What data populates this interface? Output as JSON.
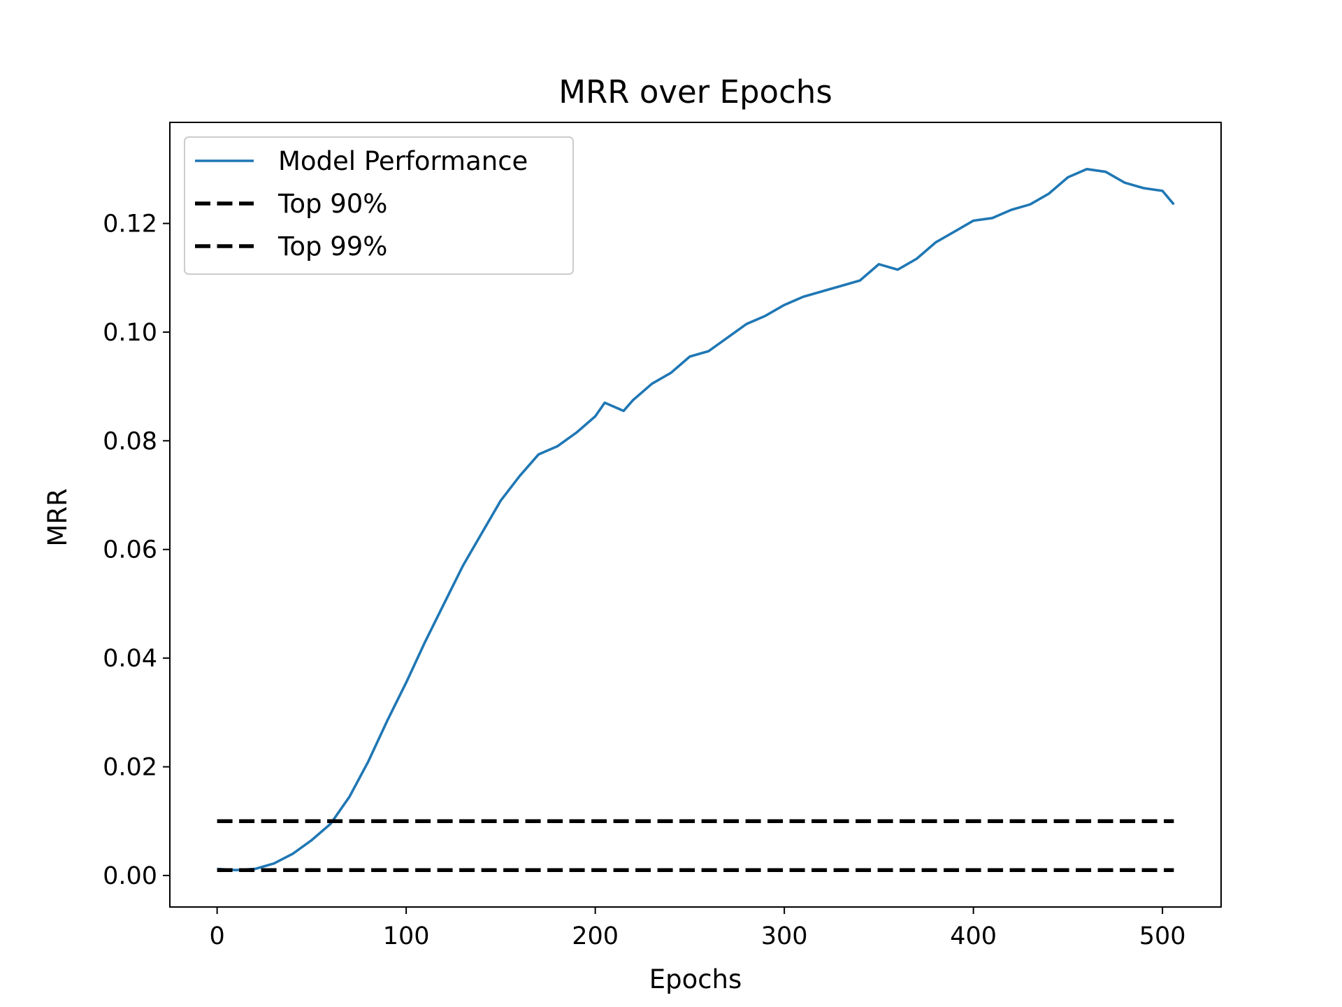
{
  "chart_data": {
    "type": "line",
    "title": "MRR over Epochs",
    "xlabel": "Epochs",
    "ylabel": "MRR",
    "xlim": [
      -25,
      531
    ],
    "ylim": [
      -0.0058,
      0.1386
    ],
    "xticks": [
      0,
      100,
      200,
      300,
      400,
      500
    ],
    "xtick_labels": [
      "0",
      "100",
      "200",
      "300",
      "400",
      "500"
    ],
    "yticks": [
      0.0,
      0.02,
      0.04,
      0.06,
      0.08,
      0.1,
      0.12
    ],
    "ytick_labels": [
      "0.00",
      "0.02",
      "0.04",
      "0.06",
      "0.08",
      "0.10",
      "0.12"
    ],
    "grid": false,
    "legend_position": "top-left",
    "series": [
      {
        "name": "Model Performance",
        "color": "#1f77b4",
        "style": "solid",
        "x": [
          0,
          10,
          20,
          30,
          40,
          50,
          60,
          70,
          80,
          90,
          100,
          110,
          120,
          130,
          140,
          150,
          160,
          170,
          180,
          190,
          200,
          205,
          215,
          220,
          230,
          240,
          250,
          260,
          270,
          280,
          290,
          300,
          310,
          320,
          330,
          340,
          350,
          360,
          370,
          380,
          390,
          400,
          410,
          420,
          430,
          440,
          450,
          460,
          470,
          480,
          490,
          500,
          506
        ],
        "y": [
          0.0012,
          0.001,
          0.0012,
          0.0022,
          0.004,
          0.0065,
          0.0095,
          0.0145,
          0.021,
          0.0285,
          0.0355,
          0.043,
          0.05,
          0.057,
          0.063,
          0.069,
          0.0735,
          0.0775,
          0.079,
          0.0815,
          0.0845,
          0.087,
          0.0855,
          0.0875,
          0.0905,
          0.0925,
          0.0955,
          0.0965,
          0.099,
          0.1015,
          0.103,
          0.105,
          0.1065,
          0.1075,
          0.1085,
          0.1095,
          0.1125,
          0.1115,
          0.1135,
          0.1165,
          0.1185,
          0.1205,
          0.121,
          0.1225,
          0.1235,
          0.1255,
          0.1285,
          0.13,
          0.1295,
          0.1275,
          0.1265,
          0.126,
          0.1235
        ]
      },
      {
        "name": "Top 90%",
        "color": "#000000",
        "style": "dashed",
        "x": [
          0,
          506
        ],
        "y": [
          0.01,
          0.01
        ]
      },
      {
        "name": "Top 99%",
        "color": "#000000",
        "style": "dashed",
        "x": [
          0,
          506
        ],
        "y": [
          0.001,
          0.001
        ]
      }
    ]
  }
}
